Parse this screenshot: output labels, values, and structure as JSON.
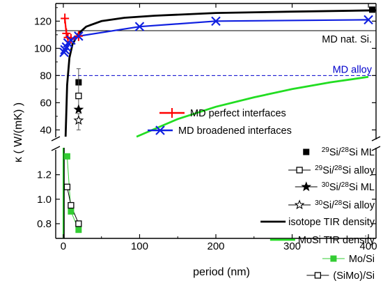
{
  "chart_data": {
    "type": "line",
    "xlabel": "period (nm)",
    "ylabel": "κ ( W/(mK) )",
    "xlim": [
      -10,
      410
    ],
    "x_ticks": [
      0,
      100,
      200,
      300,
      400
    ],
    "axis_break": "y",
    "panels": [
      {
        "name": "upper",
        "ylim": [
          33,
          133
        ],
        "y_ticks": [
          40,
          60,
          80,
          100,
          120
        ]
      },
      {
        "name": "lower",
        "ylim": [
          0.68,
          1.42
        ],
        "y_ticks": [
          0.8,
          1.0,
          1.2
        ]
      }
    ],
    "annotations": [
      {
        "text": "MD nat. Si.",
        "y": 113,
        "panel": "upper",
        "style": "solid"
      },
      {
        "text": "MD alloy",
        "y": 80,
        "panel": "upper",
        "style": "dashed",
        "color": "#0000cc"
      }
    ],
    "series": [
      {
        "name": "MD perfect interfaces",
        "color": "#ff0000",
        "marker": "+",
        "panel": "upper",
        "x": [
          2,
          4,
          6,
          10,
          20
        ],
        "y": [
          122,
          111,
          108,
          107,
          109
        ]
      },
      {
        "name": "MD broadened interfaces",
        "color": "#1020e0",
        "marker": "x",
        "panel": "upper",
        "x": [
          1,
          2,
          4,
          6,
          10,
          20,
          100,
          200,
          400
        ],
        "y": [
          97,
          99,
          101,
          104,
          106,
          109,
          116,
          120,
          121
        ]
      },
      {
        "legend_label": [
          "29",
          "Si/",
          "28",
          "Si ML"
        ],
        "marker": "filled-square",
        "panel": "upper",
        "x": [
          20
        ],
        "y": [
          75
        ]
      },
      {
        "legend_label": [
          "29",
          "Si/",
          "28",
          "Si alloy"
        ],
        "marker": "open-square",
        "panel": "upper",
        "x": [
          20
        ],
        "y": [
          65
        ],
        "error": [
          55,
          85
        ]
      },
      {
        "legend_label": [
          "30",
          "Si/",
          "28",
          "Si ML"
        ],
        "marker": "filled-star",
        "panel": "upper",
        "x": [
          20
        ],
        "y": [
          55
        ]
      },
      {
        "legend_label": [
          "30",
          "Si/",
          "28",
          "Si alloy"
        ],
        "marker": "open-star",
        "panel": "upper",
        "x": [
          20
        ],
        "y": [
          47
        ],
        "error": [
          40,
          52
        ]
      },
      {
        "name": "isotope TIR density",
        "color": "#000000",
        "marker": "none",
        "panel": "upper",
        "x": [
          3,
          5,
          8,
          12,
          20,
          30,
          50,
          80,
          120,
          200,
          300,
          410
        ],
        "y": [
          35,
          73,
          93,
          103,
          111,
          116,
          120,
          122.5,
          124,
          126,
          127,
          128
        ]
      },
      {
        "name": "MoSi TIR density",
        "color": "#22dd22",
        "marker": "none",
        "panel": "upper",
        "x": [
          96,
          150,
          200,
          250,
          300,
          350,
          400
        ],
        "y": [
          35,
          48,
          57,
          64,
          70,
          75,
          79
        ]
      },
      {
        "name": "Mo/Si",
        "color": "#33cc33",
        "marker": "filled-square",
        "panel": "lower",
        "x": [
          5,
          10,
          20
        ],
        "y": [
          1.35,
          0.9,
          0.75
        ]
      },
      {
        "name": "(SiMo)/Si",
        "color": "#000000",
        "marker": "open-square",
        "panel": "lower",
        "x": [
          5,
          10,
          20
        ],
        "y": [
          1.1,
          0.95,
          0.8
        ]
      }
    ],
    "extra_points": [
      {
        "marker": "filled-square",
        "x": [
          405
        ],
        "y": [
          130
        ],
        "panel": "upper"
      }
    ],
    "legend": {
      "entries": [
        {
          "label": "MD perfect interfaces"
        },
        {
          "label": "MD broadened interfaces"
        },
        {
          "label_parts": [
            "29",
            "Si/",
            "28",
            "Si ML"
          ]
        },
        {
          "label_parts": [
            "29",
            "Si/",
            "28",
            "Si alloy"
          ]
        },
        {
          "label_parts": [
            "30",
            "Si/",
            "28",
            "Si ML"
          ]
        },
        {
          "label_parts": [
            "30",
            "Si/",
            "28",
            "Si alloy"
          ]
        },
        {
          "label": "isotope TIR density"
        },
        {
          "label": "MoSi TIR density"
        },
        {
          "label": "Mo/Si"
        },
        {
          "label": "(SiMo)/Si"
        }
      ]
    },
    "grid": false
  }
}
